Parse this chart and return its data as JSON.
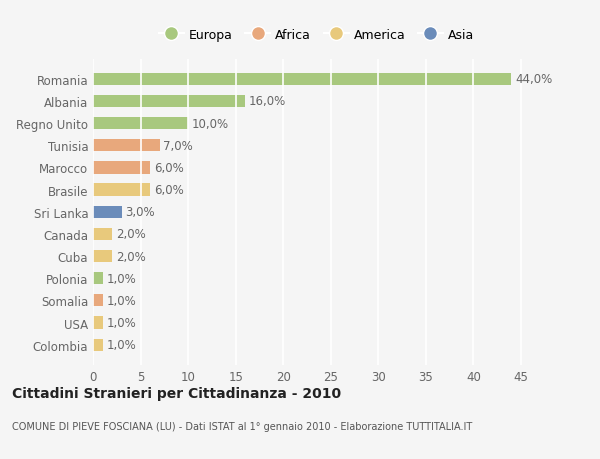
{
  "countries": [
    "Romania",
    "Albania",
    "Regno Unito",
    "Tunisia",
    "Marocco",
    "Brasile",
    "Sri Lanka",
    "Canada",
    "Cuba",
    "Polonia",
    "Somalia",
    "USA",
    "Colombia"
  ],
  "values": [
    44.0,
    16.0,
    10.0,
    7.0,
    6.0,
    6.0,
    3.0,
    2.0,
    2.0,
    1.0,
    1.0,
    1.0,
    1.0
  ],
  "continents": [
    "Europa",
    "Europa",
    "Europa",
    "Africa",
    "Africa",
    "America",
    "Asia",
    "America",
    "America",
    "Europa",
    "Africa",
    "America",
    "America"
  ],
  "colors": {
    "Europa": "#a8c87e",
    "Africa": "#e8a87c",
    "America": "#e8c97c",
    "Asia": "#6b8cba"
  },
  "xlim": [
    0,
    47
  ],
  "xticks": [
    0,
    5,
    10,
    15,
    20,
    25,
    30,
    35,
    40,
    45
  ],
  "title": "Cittadini Stranieri per Cittadinanza - 2010",
  "subtitle": "COMUNE DI PIEVE FOSCIANA (LU) - Dati ISTAT al 1° gennaio 2010 - Elaborazione TUTTITALIA.IT",
  "background_color": "#f5f5f5",
  "bar_height": 0.55,
  "grid_color": "#ffffff",
  "label_fontsize": 8.5,
  "tick_fontsize": 8.5,
  "legend_order": [
    "Europa",
    "Africa",
    "America",
    "Asia"
  ]
}
